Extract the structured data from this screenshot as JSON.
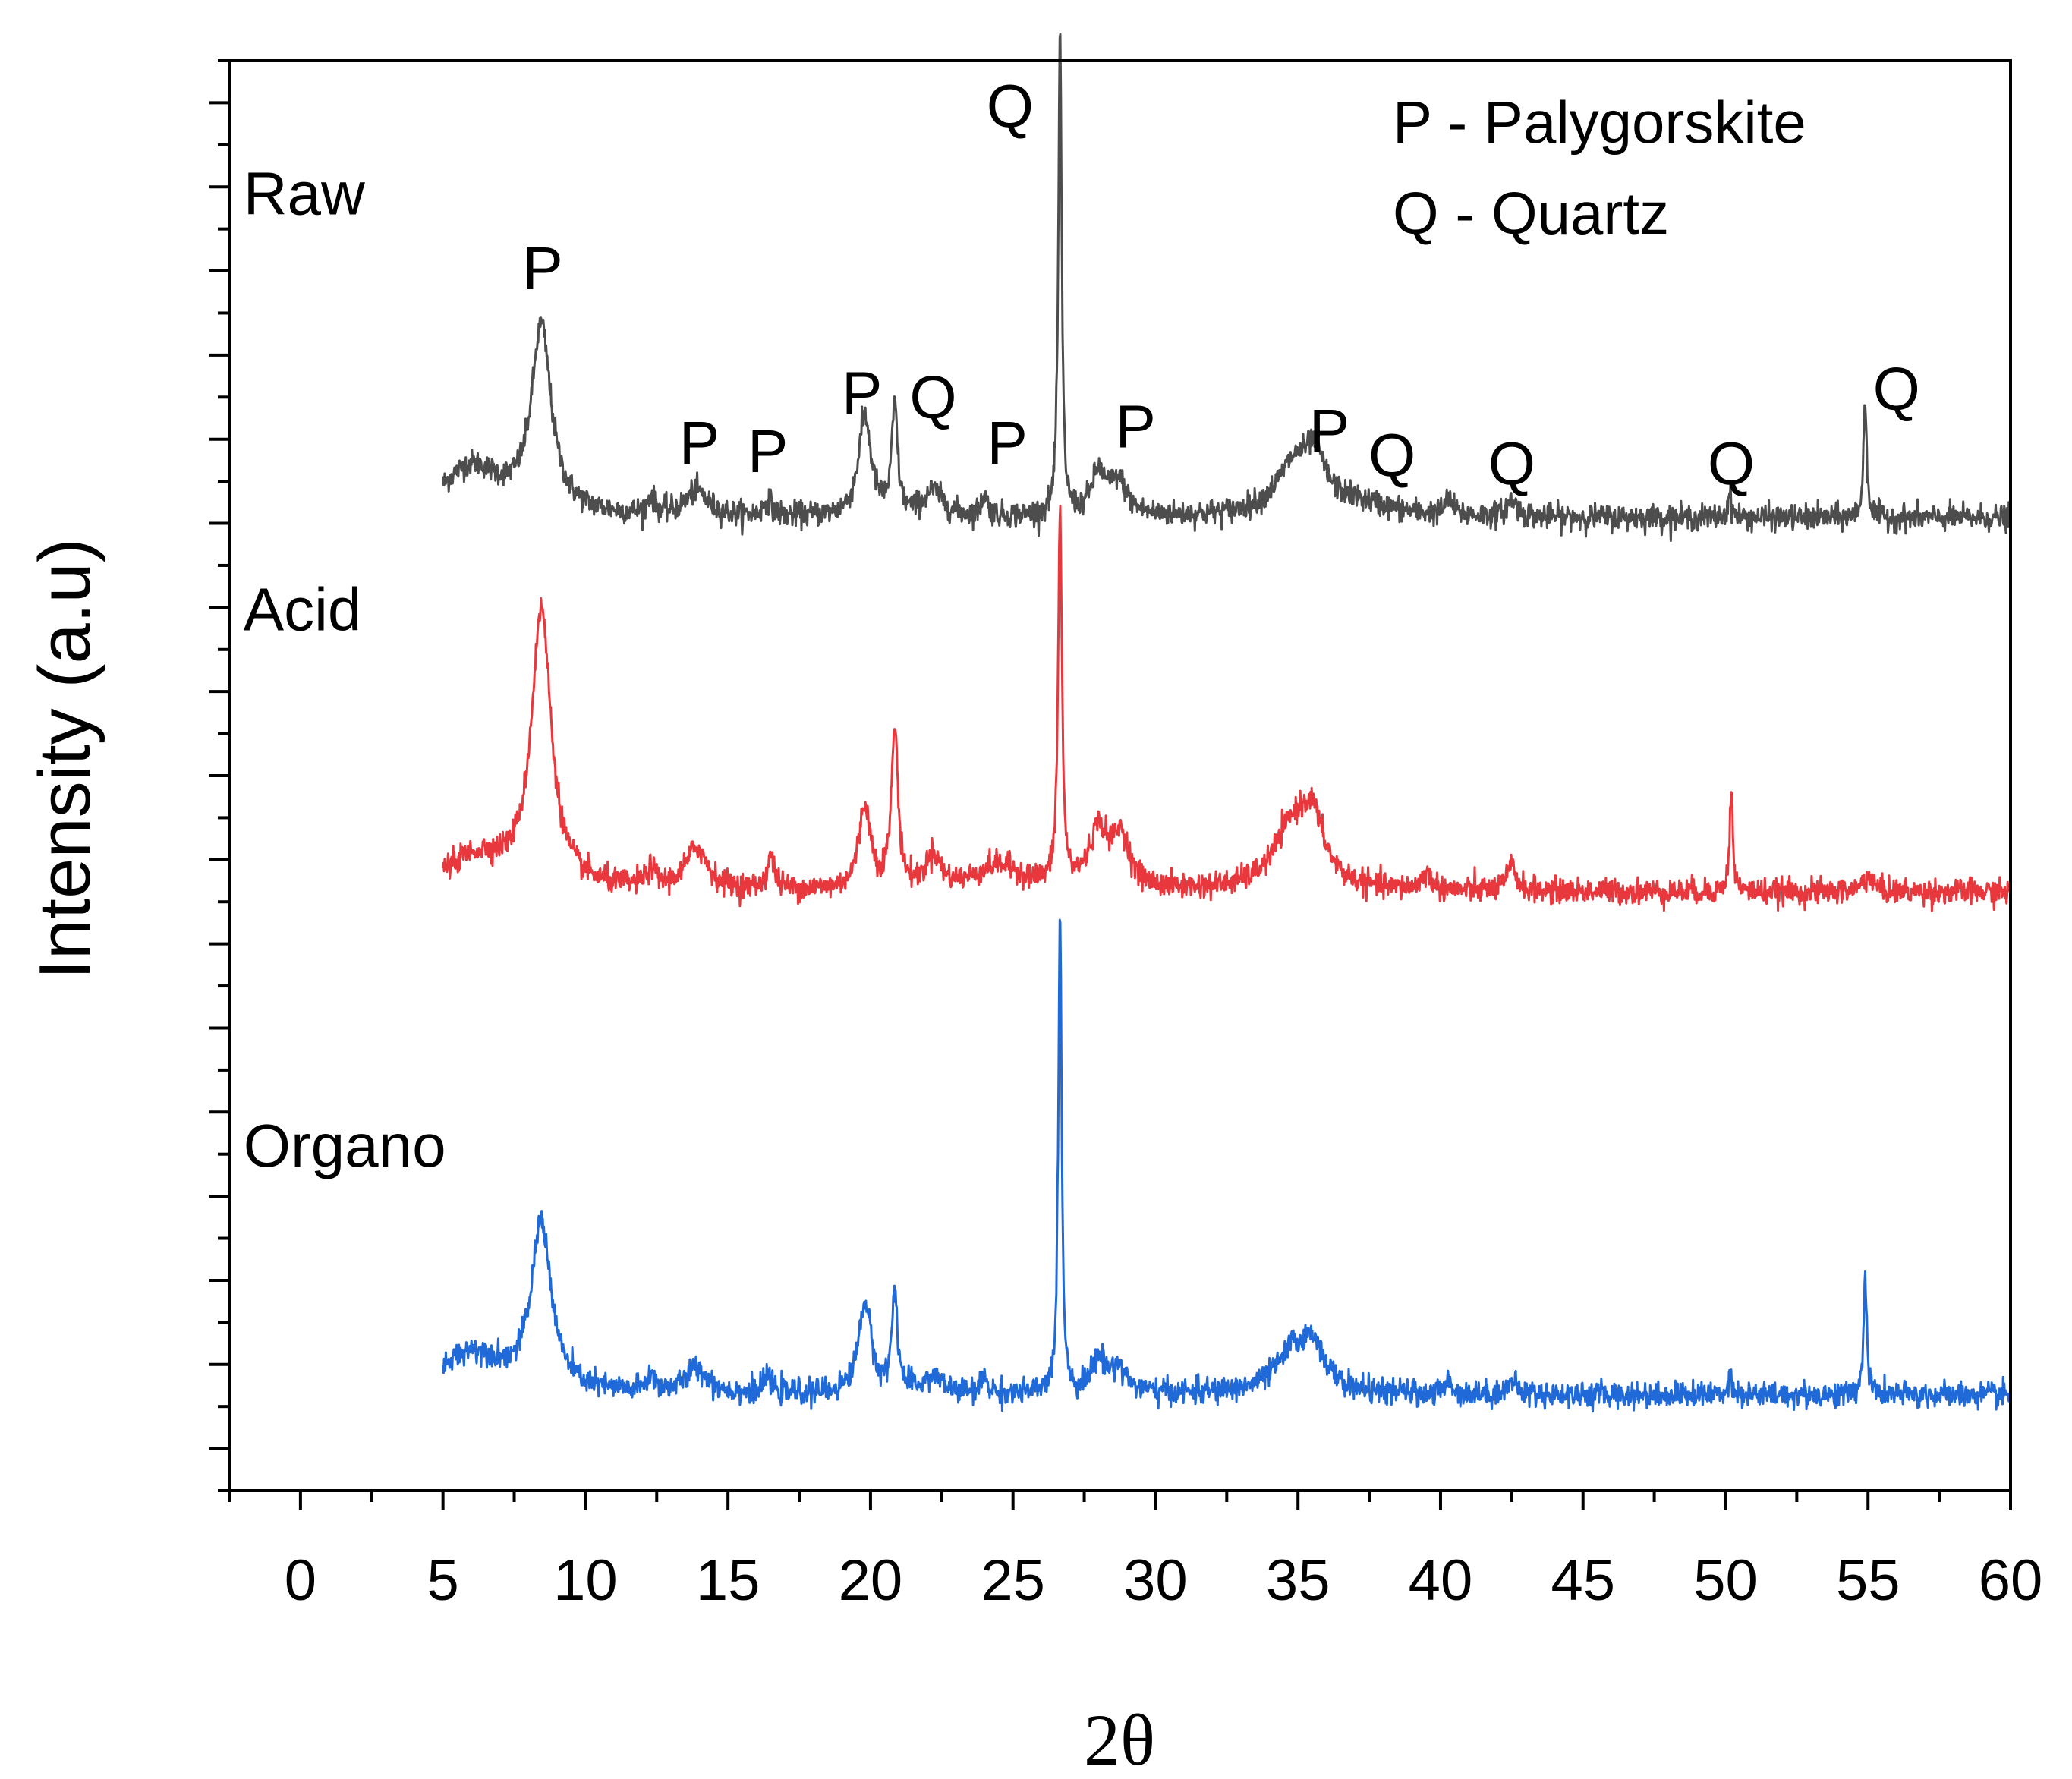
{
  "chart_data": {
    "type": "line",
    "title": "",
    "xlabel": "2θ",
    "ylabel": "Intensity (a.u)",
    "xlim": [
      -2.5,
      60
    ],
    "ylim": [
      0,
      1.72
    ],
    "x_ticks": [
      0,
      5,
      10,
      15,
      20,
      25,
      30,
      35,
      40,
      45,
      50,
      55,
      60
    ],
    "y_tick_labels_shown": false,
    "legend_text": [
      "P - Palygorskite",
      "Q - Quartz"
    ],
    "series": [
      {
        "name": "Raw",
        "color": "#4d4d4d",
        "baseline": 1.17,
        "noise": 0.0075,
        "peaks": [
          [
            6.0,
            0.06,
            1.3
          ],
          [
            8.45,
            0.22,
            0.42
          ],
          [
            12.3,
            0.02,
            0.15
          ],
          [
            13.9,
            0.03,
            0.45
          ],
          [
            16.4,
            0.02,
            0.15
          ],
          [
            19.8,
            0.12,
            0.27
          ],
          [
            20.85,
            0.13,
            0.12
          ],
          [
            22.2,
            0.03,
            0.4
          ],
          [
            24.0,
            0.025,
            0.12
          ],
          [
            26.65,
            0.58,
            0.07
          ],
          [
            28.0,
            0.05,
            0.3
          ],
          [
            28.7,
            0.04,
            0.35
          ],
          [
            34.9,
            0.06,
            0.8
          ],
          [
            35.6,
            0.05,
            0.4
          ],
          [
            37.0,
            0.015,
            1.5
          ],
          [
            40.3,
            0.02,
            0.15
          ],
          [
            42.5,
            0.02,
            0.2
          ],
          [
            50.15,
            0.03,
            0.07
          ],
          [
            54.9,
            0.14,
            0.07
          ]
        ]
      },
      {
        "name": "Acid",
        "color": "#e8383d",
        "baseline": 0.72,
        "noise": 0.0075,
        "peaks": [
          [
            6.2,
            0.04,
            1.4
          ],
          [
            8.45,
            0.33,
            0.42
          ],
          [
            12.3,
            0.02,
            0.2
          ],
          [
            13.9,
            0.05,
            0.45
          ],
          [
            16.5,
            0.04,
            0.15
          ],
          [
            19.8,
            0.1,
            0.25
          ],
          [
            20.85,
            0.19,
            0.14
          ],
          [
            22.2,
            0.04,
            0.3
          ],
          [
            24.5,
            0.03,
            1.0
          ],
          [
            26.65,
            0.45,
            0.08
          ],
          [
            28.0,
            0.07,
            0.4
          ],
          [
            28.8,
            0.06,
            0.35
          ],
          [
            34.8,
            0.07,
            0.8
          ],
          [
            35.5,
            0.07,
            0.5
          ],
          [
            39.5,
            0.02,
            0.2
          ],
          [
            42.5,
            0.03,
            0.2
          ],
          [
            50.2,
            0.12,
            0.07
          ],
          [
            55.0,
            0.02,
            0.2
          ]
        ]
      },
      {
        "name": "Organo",
        "color": "#1f69d8",
        "baseline": 0.115,
        "noise": 0.0075,
        "peaks": [
          [
            6.0,
            0.05,
            1.3
          ],
          [
            8.45,
            0.2,
            0.42
          ],
          [
            12.3,
            0.02,
            0.15
          ],
          [
            13.9,
            0.03,
            0.45
          ],
          [
            16.4,
            0.02,
            0.15
          ],
          [
            19.8,
            0.11,
            0.27
          ],
          [
            20.85,
            0.12,
            0.12
          ],
          [
            22.2,
            0.02,
            0.4
          ],
          [
            24.0,
            0.02,
            0.12
          ],
          [
            26.65,
            0.58,
            0.07
          ],
          [
            28.0,
            0.04,
            0.3
          ],
          [
            28.7,
            0.03,
            0.35
          ],
          [
            34.9,
            0.055,
            0.8
          ],
          [
            35.6,
            0.04,
            0.4
          ],
          [
            40.3,
            0.015,
            0.15
          ],
          [
            42.5,
            0.015,
            0.2
          ],
          [
            50.15,
            0.03,
            0.07
          ],
          [
            54.9,
            0.14,
            0.07
          ]
        ]
      }
    ],
    "series_labels": [
      {
        "text": "Raw",
        "x": -2.0,
        "y": 1.535
      },
      {
        "text": "Acid",
        "x": -2.0,
        "y": 1.035
      },
      {
        "text": "Organo",
        "x": -2.0,
        "y": 0.39
      }
    ],
    "annotations": [
      {
        "text": "P",
        "x": 8.5,
        "y": 1.445
      },
      {
        "text": "P",
        "x": 14.0,
        "y": 1.235
      },
      {
        "text": "P",
        "x": 16.4,
        "y": 1.225
      },
      {
        "text": "P",
        "x": 19.7,
        "y": 1.295
      },
      {
        "text": "Q",
        "x": 22.2,
        "y": 1.29
      },
      {
        "text": "P",
        "x": 24.8,
        "y": 1.235
      },
      {
        "text": "Q",
        "x": 24.9,
        "y": 1.64
      },
      {
        "text": "P",
        "x": 29.3,
        "y": 1.255
      },
      {
        "text": "P",
        "x": 36.1,
        "y": 1.25
      },
      {
        "text": "Q",
        "x": 38.3,
        "y": 1.22
      },
      {
        "text": "Q",
        "x": 42.5,
        "y": 1.21
      },
      {
        "text": "Q",
        "x": 50.2,
        "y": 1.21
      },
      {
        "text": "Q",
        "x": 56.0,
        "y": 1.3
      }
    ]
  }
}
